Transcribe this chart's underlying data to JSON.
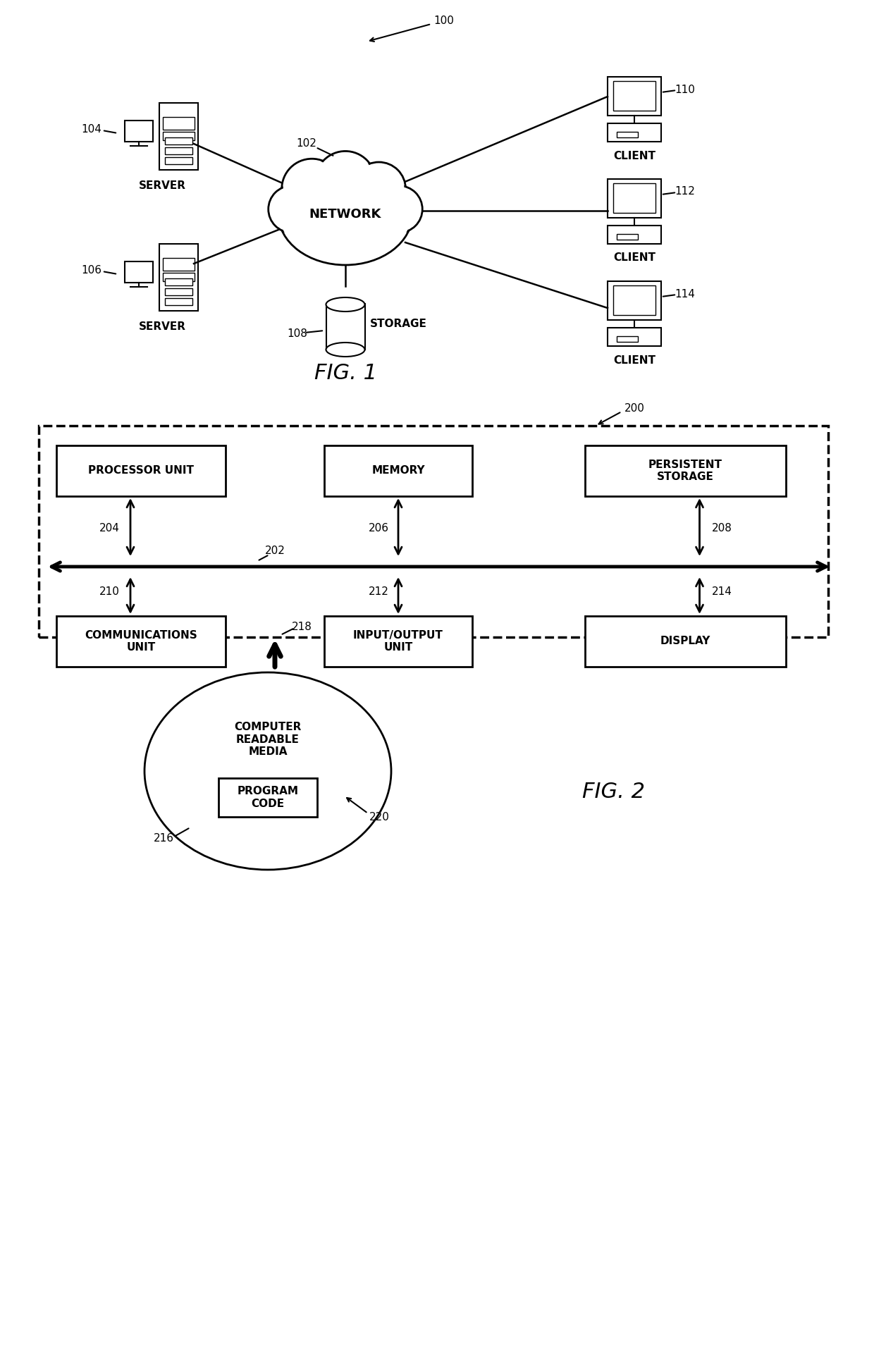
{
  "bg_color": "#ffffff",
  "line_color": "#000000",
  "fig1_title": "FIG. 1",
  "fig2_title": "FIG. 2",
  "fig1_label": "100",
  "network_label": "102",
  "network_text": "NETWORK",
  "storage_label": "108",
  "storage_text": "STORAGE",
  "server1_label": "104",
  "server1_text": "SERVER",
  "server2_label": "106",
  "server2_text": "SERVER",
  "client1_label": "110",
  "client1_text": "CLIENT",
  "client2_label": "112",
  "client2_text": "CLIENT",
  "client3_label": "114",
  "client3_text": "CLIENT",
  "fig2_label": "200",
  "bus_label": "202",
  "proc_box": "PROCESSOR UNIT",
  "proc_label": "204",
  "mem_box": "MEMORY",
  "mem_label": "206",
  "pers_box": "PERSISTENT\nSTORAGE",
  "pers_label": "208",
  "comm_box": "COMMUNICATIONS\nUNIT",
  "comm_label": "210",
  "io_box": "INPUT/OUTPUT\nUNIT",
  "io_label": "212",
  "disp_box": "DISPLAY",
  "disp_label": "214",
  "media_text": "COMPUTER\nREADABLE\nMEDIA",
  "media_label": "216",
  "prog_box": "PROGRAM\nCODE",
  "arrow218_label": "218",
  "arrow220_label": "220"
}
